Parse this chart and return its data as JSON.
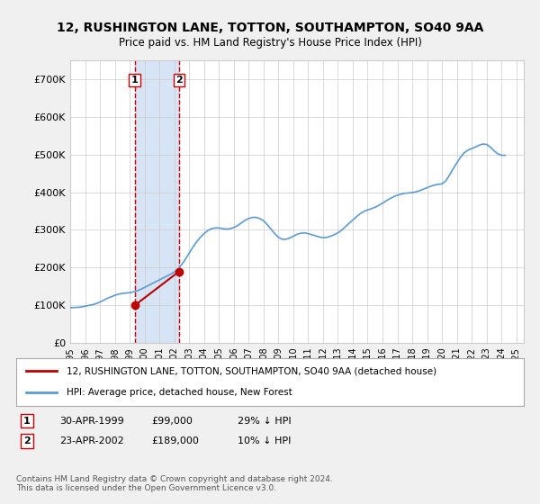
{
  "title": "12, RUSHINGTON LANE, TOTTON, SOUTHAMPTON, SO40 9AA",
  "subtitle": "Price paid vs. HM Land Registry's House Price Index (HPI)",
  "background_color": "#f0f0f0",
  "plot_bg_color": "#ffffff",
  "ylim": [
    0,
    750000
  ],
  "yticks": [
    0,
    100000,
    200000,
    300000,
    400000,
    500000,
    600000,
    700000
  ],
  "ytick_labels": [
    "£0",
    "£100K",
    "£200K",
    "£300K",
    "£400K",
    "£500K",
    "£600K",
    "£700K"
  ],
  "sale1_date_num": 1999.33,
  "sale1_price": 99000,
  "sale1_label": "1",
  "sale1_date_str": "30-APR-1999",
  "sale1_price_str": "£99,000",
  "sale1_hpi_str": "29% ↓ HPI",
  "sale2_date_num": 2002.31,
  "sale2_price": 189000,
  "sale2_label": "2",
  "sale2_date_str": "23-APR-2002",
  "sale2_price_str": "£189,000",
  "sale2_hpi_str": "10% ↓ HPI",
  "hpi_color": "#5b9bd5",
  "price_color": "#c00000",
  "sale_marker_color": "#c00000",
  "shade_color": "#c6d9f1",
  "vline_color": "#cc0000",
  "legend_label1": "12, RUSHINGTON LANE, TOTTON, SOUTHAMPTON, SO40 9AA (detached house)",
  "legend_label2": "HPI: Average price, detached house, New Forest",
  "footer": "Contains HM Land Registry data © Crown copyright and database right 2024.\nThis data is licensed under the Open Government Licence v3.0.",
  "hpi_data": {
    "years": [
      1995.0,
      1995.25,
      1995.5,
      1995.75,
      1996.0,
      1996.25,
      1996.5,
      1996.75,
      1997.0,
      1997.25,
      1997.5,
      1997.75,
      1998.0,
      1998.25,
      1998.5,
      1998.75,
      1999.0,
      1999.25,
      1999.5,
      1999.75,
      2000.0,
      2000.25,
      2000.5,
      2000.75,
      2001.0,
      2001.25,
      2001.5,
      2001.75,
      2002.0,
      2002.25,
      2002.5,
      2002.75,
      2003.0,
      2003.25,
      2003.5,
      2003.75,
      2004.0,
      2004.25,
      2004.5,
      2004.75,
      2005.0,
      2005.25,
      2005.5,
      2005.75,
      2006.0,
      2006.25,
      2006.5,
      2006.75,
      2007.0,
      2007.25,
      2007.5,
      2007.75,
      2008.0,
      2008.25,
      2008.5,
      2008.75,
      2009.0,
      2009.25,
      2009.5,
      2009.75,
      2010.0,
      2010.25,
      2010.5,
      2010.75,
      2011.0,
      2011.25,
      2011.5,
      2011.75,
      2012.0,
      2012.25,
      2012.5,
      2012.75,
      2013.0,
      2013.25,
      2013.5,
      2013.75,
      2014.0,
      2014.25,
      2014.5,
      2014.75,
      2015.0,
      2015.25,
      2015.5,
      2015.75,
      2016.0,
      2016.25,
      2016.5,
      2016.75,
      2017.0,
      2017.25,
      2017.5,
      2017.75,
      2018.0,
      2018.25,
      2018.5,
      2018.75,
      2019.0,
      2019.25,
      2019.5,
      2019.75,
      2020.0,
      2020.25,
      2020.5,
      2020.75,
      2021.0,
      2021.25,
      2021.5,
      2021.75,
      2022.0,
      2022.25,
      2022.5,
      2022.75,
      2023.0,
      2023.25,
      2023.5,
      2023.75,
      2024.0,
      2024.25
    ],
    "values": [
      93000,
      93500,
      94000,
      95000,
      97000,
      99000,
      101000,
      104000,
      108000,
      113000,
      118000,
      122000,
      126000,
      129000,
      131000,
      132000,
      133000,
      135000,
      138000,
      142000,
      147000,
      152000,
      157000,
      162000,
      167000,
      172000,
      177000,
      182000,
      188000,
      196000,
      208000,
      222000,
      238000,
      254000,
      268000,
      280000,
      290000,
      298000,
      303000,
      305000,
      305000,
      303000,
      302000,
      303000,
      306000,
      311000,
      318000,
      325000,
      330000,
      333000,
      333000,
      330000,
      324000,
      314000,
      302000,
      290000,
      280000,
      275000,
      275000,
      278000,
      283000,
      288000,
      291000,
      292000,
      290000,
      287000,
      284000,
      281000,
      279000,
      280000,
      283000,
      287000,
      292000,
      299000,
      308000,
      317000,
      326000,
      335000,
      343000,
      349000,
      353000,
      356000,
      360000,
      365000,
      371000,
      377000,
      383000,
      388000,
      392000,
      395000,
      397000,
      398000,
      399000,
      401000,
      404000,
      408000,
      412000,
      416000,
      419000,
      421000,
      422000,
      430000,
      445000,
      462000,
      478000,
      493000,
      505000,
      512000,
      516000,
      520000,
      525000,
      528000,
      527000,
      520000,
      510000,
      502000,
      498000,
      498000
    ]
  },
  "price_data": {
    "years": [
      1999.33,
      2002.31
    ],
    "values": [
      99000,
      189000
    ]
  },
  "xtick_years": [
    1995,
    1996,
    1997,
    1998,
    1999,
    2000,
    2001,
    2002,
    2003,
    2004,
    2005,
    2006,
    2007,
    2008,
    2009,
    2010,
    2011,
    2012,
    2013,
    2014,
    2015,
    2016,
    2017,
    2018,
    2019,
    2020,
    2021,
    2022,
    2023,
    2024,
    2025
  ]
}
